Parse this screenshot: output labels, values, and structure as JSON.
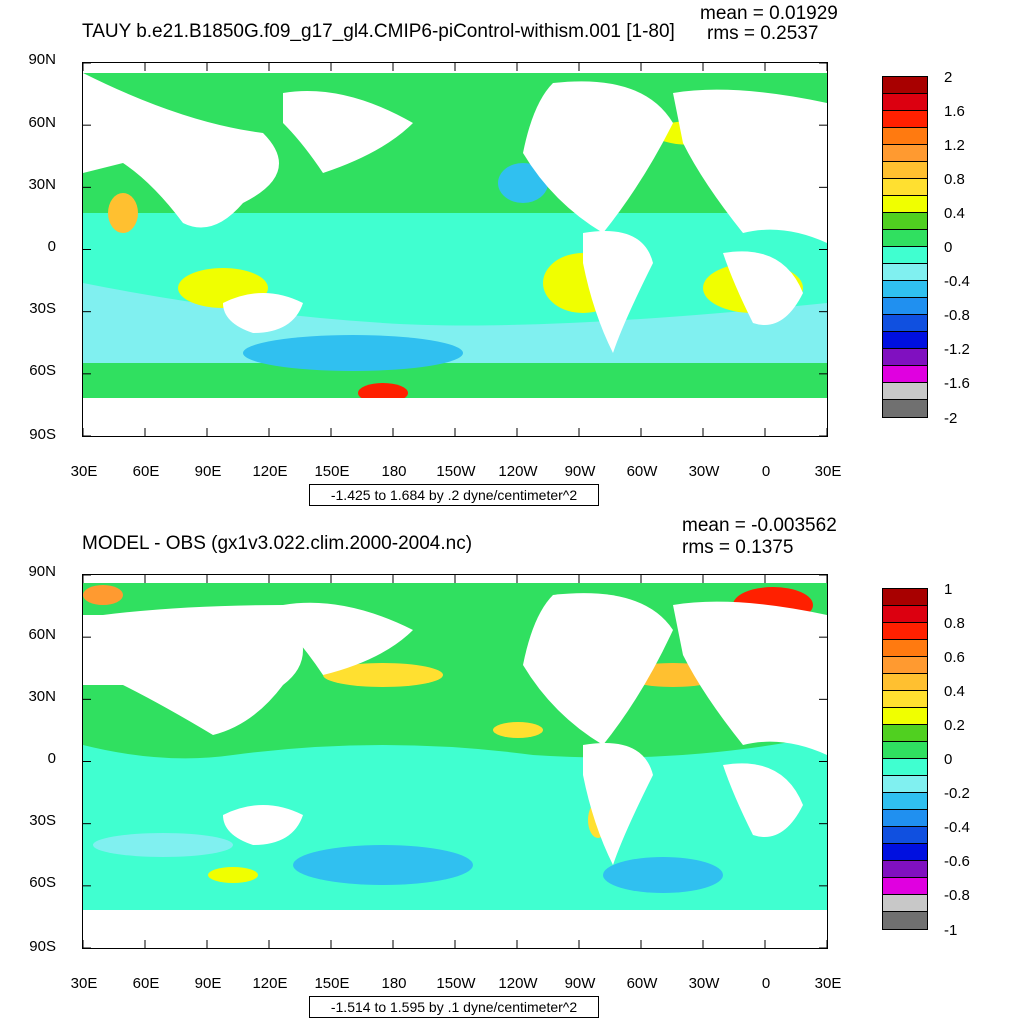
{
  "top": {
    "title": "TAUY b.e21.B1850G.f09_g17_gl4.CMIP6-piControl-withism.001 [1-80]",
    "mean": "mean = 0.01929",
    "rms": "rms = 0.2537",
    "range": "-1.425 to 1.684 by .2 dyne/centimeter^2",
    "colorbar_labels": [
      "2",
      "1.6",
      "1.2",
      "0.8",
      "0.4",
      "0",
      "-0.4",
      "-0.8",
      "-1.2",
      "-1.6",
      "-2"
    ],
    "colorbar_colors": [
      "#a80000",
      "#dc0010",
      "#ff2000",
      "#ff7a10",
      "#ff9a30",
      "#ffc030",
      "#ffe030",
      "#f0ff00",
      "#50d020",
      "#30e060",
      "#40ffd0",
      "#80f0f0",
      "#30c0f0",
      "#2090f0",
      "#1050e0",
      "#0010e0",
      "#8010c0",
      "#e000e0",
      "#c8c8c8",
      "#707070"
    ]
  },
  "bottom": {
    "title": "MODEL - OBS (gx1v3.022.clim.2000-2004.nc)",
    "mean": "mean = -0.003562",
    "rms": "rms = 0.1375",
    "range": "-1.514 to 1.595 by .1 dyne/centimeter^2",
    "colorbar_labels": [
      "1",
      "0.8",
      "0.6",
      "0.4",
      "0.2",
      "0",
      "-0.2",
      "-0.4",
      "-0.6",
      "-0.8",
      "-1"
    ],
    "colorbar_colors": [
      "#a80000",
      "#dc0010",
      "#ff2000",
      "#ff7a10",
      "#ff9a30",
      "#ffc030",
      "#ffe030",
      "#f0ff00",
      "#50d020",
      "#30e060",
      "#40ffd0",
      "#80f0f0",
      "#30c0f0",
      "#2090f0",
      "#1050e0",
      "#0010e0",
      "#8010c0",
      "#e000e0",
      "#c8c8c8",
      "#707070"
    ]
  },
  "axes": {
    "lat_labels": [
      "90N",
      "60N",
      "30N",
      "0",
      "30S",
      "60S",
      "90S"
    ],
    "lon_labels": [
      "30E",
      "60E",
      "90E",
      "120E",
      "150E",
      "180",
      "150W",
      "120W",
      "90W",
      "60W",
      "30W",
      "0",
      "30E"
    ]
  }
}
